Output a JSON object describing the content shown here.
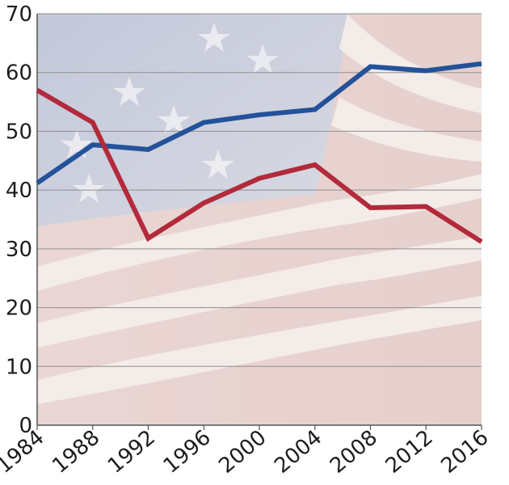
{
  "chart_data": {
    "type": "line",
    "title": "",
    "xlabel": "",
    "ylabel": "",
    "x": [
      "1984",
      "1988",
      "1992",
      "1996",
      "2000",
      "2004",
      "2008",
      "2012",
      "2016"
    ],
    "series": [
      {
        "color": "#23529a",
        "values": [
          41.2,
          47.7,
          46.9,
          51.5,
          52.8,
          53.7,
          61.0,
          60.3,
          61.5
        ]
      },
      {
        "color": "#b22a3b",
        "values": [
          57.0,
          51.5,
          31.8,
          37.8,
          42.0,
          44.3,
          37.0,
          37.2,
          31.2
        ]
      }
    ],
    "ylim": [
      0,
      70
    ],
    "yticks": [
      "0",
      "10",
      "20",
      "30",
      "40",
      "50",
      "60",
      "70"
    ],
    "grid": "horizontal",
    "legend": "none"
  },
  "style": {
    "background_flag_colors": [
      "#c9cddd",
      "#e9d6d3",
      "#f4ece8"
    ],
    "gridline_color": "#8f8f8f",
    "axis_color": "#555555"
  }
}
